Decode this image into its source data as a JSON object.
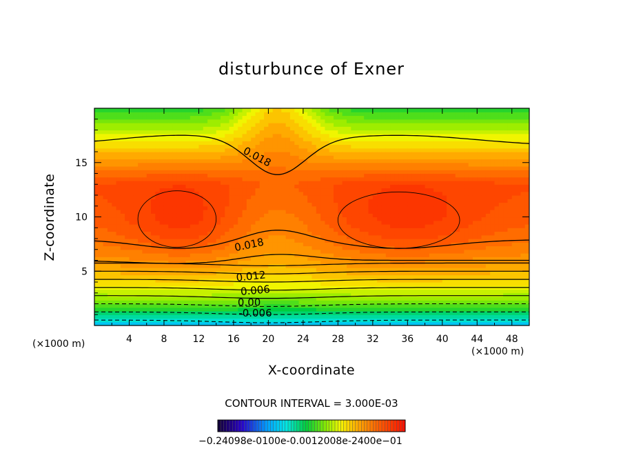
{
  "chart_data": {
    "type": "contour",
    "title": "disturbunce of Exner",
    "xlabel": "X-coordinate",
    "ylabel": "Z-coordinate",
    "x_unit": "(×1000 m)",
    "xlim": [
      0,
      50
    ],
    "ylim": [
      0,
      20
    ],
    "x_ticks": [
      "4",
      "8",
      "12",
      "16",
      "20",
      "24",
      "28",
      "32",
      "36",
      "40",
      "44",
      "48"
    ],
    "y_ticks": [
      "5",
      "10",
      "15"
    ],
    "contour_interval_text": "CONTOUR INTERVAL = 3.000E-03",
    "contour_labels": [
      {
        "text": "0.018",
        "x": 18.7,
        "z": 15.5,
        "angle": 28
      },
      {
        "text": "0.018",
        "x": 17.8,
        "z": 7.4,
        "angle": -12
      },
      {
        "text": "0.012",
        "x": 18.0,
        "z": 4.5,
        "angle": -6
      },
      {
        "text": "0.006",
        "x": 18.5,
        "z": 3.2,
        "angle": -5
      },
      {
        "text": "0.00",
        "x": 17.8,
        "z": 2.1,
        "angle": 0
      },
      {
        "text": "-0.006",
        "x": 18.5,
        "z": 1.1,
        "angle": 0
      }
    ],
    "colorbar_labels_text": "−0.24098e-0100e-0.0012008e-2400e−01",
    "colorbar": {
      "min": -0.024,
      "max": 0.024,
      "levels": 32
    }
  }
}
